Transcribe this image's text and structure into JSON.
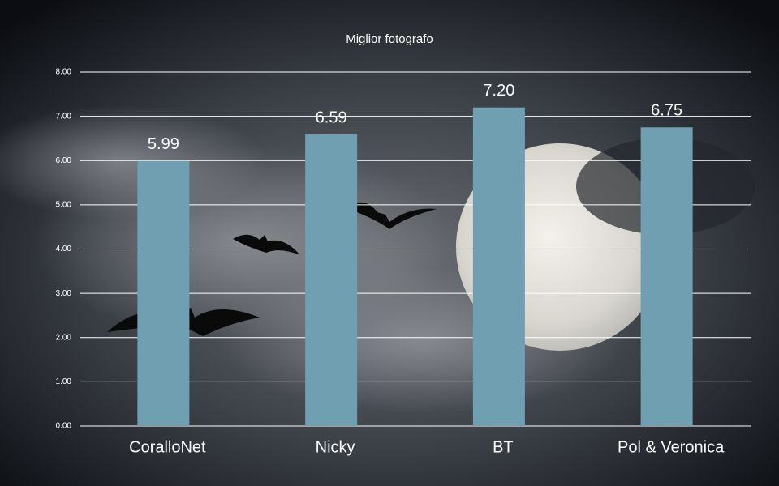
{
  "chart_data": {
    "type": "bar",
    "title": "Miglior fotografo",
    "categories": [
      "CoralloNet",
      "Nicky",
      "BT",
      "Pol & Veronica"
    ],
    "values": [
      5.99,
      6.59,
      7.2,
      6.75
    ],
    "value_labels": [
      "5.99",
      "6.59",
      "7.20",
      "6.75"
    ],
    "color": "#6f9fb1",
    "ylim": [
      0,
      8
    ],
    "yticks": [
      {
        "value": 0,
        "label": "0.00"
      },
      {
        "value": 1,
        "label": "1.00"
      },
      {
        "value": 2,
        "label": "2.00"
      },
      {
        "value": 3,
        "label": "3.00"
      },
      {
        "value": 4,
        "label": "4.00"
      },
      {
        "value": 5,
        "label": "5.00"
      },
      {
        "value": 6,
        "label": "6.00"
      },
      {
        "value": 7,
        "label": "7.00"
      },
      {
        "value": 8,
        "label": "8.00"
      }
    ],
    "grid": true
  }
}
